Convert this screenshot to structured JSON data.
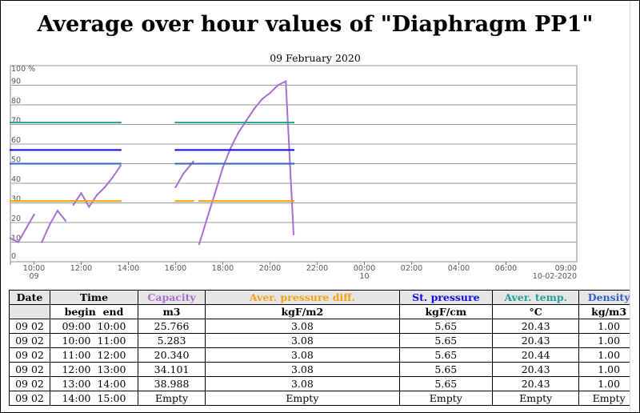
{
  "title": "Average over hour values of \"Diaphragm PP1\"",
  "chart": {
    "date_label": "09 February 2020",
    "y_unit_label": "100 %",
    "y_ticks": [
      "90",
      "80",
      "70",
      "60",
      "50",
      "40",
      "30",
      "20",
      "10",
      "0"
    ],
    "x_ticks": [
      {
        "time": "10:00",
        "date": "09"
      },
      {
        "time": "12:00",
        "date": ""
      },
      {
        "time": "14:00",
        "date": ""
      },
      {
        "time": "16:00",
        "date": ""
      },
      {
        "time": "18:00",
        "date": ""
      },
      {
        "time": "20:00",
        "date": ""
      },
      {
        "time": "22:00",
        "date": ""
      },
      {
        "time": "00:00",
        "date": "10"
      },
      {
        "time": "02:00",
        "date": ""
      },
      {
        "time": "04:00",
        "date": ""
      },
      {
        "time": "06:00",
        "date": ""
      },
      {
        "time": "09:00",
        "date": "10-02-2020"
      }
    ],
    "colors": {
      "capacity": "#a86fcf",
      "pressure_diff": "#f3a00d",
      "st_pressure": "#0d0de0",
      "temperature": "#209f95",
      "density": "#3360c4"
    }
  },
  "chart_data": {
    "type": "line",
    "title": "09 February 2020",
    "y_axis_label": "100 %",
    "ylim": [
      0,
      100
    ],
    "x_range": [
      "2020-02-09 09:00",
      "2020-02-10 09:00"
    ],
    "grid": true,
    "x_ticks": [
      "10:00",
      "12:00",
      "14:00",
      "16:00",
      "18:00",
      "20:00",
      "22:00",
      "00:00",
      "02:00",
      "04:00",
      "06:00",
      "09:00"
    ],
    "series": [
      {
        "name": "Capacity",
        "color": "#a86fcf",
        "x": [
          "09:00",
          "09:20",
          "09:40",
          "10:00",
          "10:20",
          "10:40",
          "11:00",
          "11:20",
          "11:40",
          "12:00",
          "12:20",
          "12:40",
          "13:00",
          "13:20",
          "13:40",
          "16:00",
          "16:20",
          "16:45",
          "17:00",
          "17:20",
          "17:40",
          "18:00",
          "18:20",
          "18:40",
          "19:00",
          "19:20",
          "19:40",
          "20:00",
          "20:20",
          "20:40",
          "21:00"
        ],
        "values": [
          12,
          10,
          17,
          24,
          10,
          19,
          26,
          21,
          29,
          35,
          28,
          34,
          38,
          43,
          49,
          38,
          45,
          51,
          9,
          22,
          35,
          48,
          58,
          66,
          72,
          78,
          83,
          86,
          90,
          92,
          14
        ]
      },
      {
        "name": "Aver. pressure diff.",
        "color": "#f3a00d",
        "x": [
          "09:00",
          "13:40",
          "16:00",
          "16:45",
          "17:00",
          "21:00"
        ],
        "values": [
          31,
          31,
          31,
          31,
          31,
          31
        ]
      },
      {
        "name": "St. pressure",
        "color": "#0d0de0",
        "x": [
          "09:00",
          "13:40",
          "16:00",
          "21:00"
        ],
        "values": [
          57,
          57,
          57,
          57
        ]
      },
      {
        "name": "Aver. temp.",
        "color": "#209f95",
        "x": [
          "09:00",
          "13:40",
          "16:00",
          "21:00"
        ],
        "values": [
          71,
          71,
          71,
          71
        ]
      },
      {
        "name": "Density",
        "color": "#3360c4",
        "x": [
          "09:00",
          "13:40",
          "16:00",
          "21:00"
        ],
        "values": [
          50,
          50,
          50,
          50
        ]
      }
    ]
  },
  "table": {
    "headers": {
      "date": "Date",
      "time": "Time",
      "capacity": "Capacity",
      "pressure_diff": "Aver. pressure diff.",
      "st_pressure": "St. pressure",
      "temp": "Aver. temp.",
      "density": "Density"
    },
    "units": {
      "time": "begin  end",
      "capacity": "m3",
      "pressure_diff": "kgF/m2",
      "st_pressure": "kgF/cm",
      "temp": "°C",
      "density": "kg/m3"
    },
    "rows": [
      {
        "date": "09 02",
        "time": "09:00  10:00",
        "capacity": "25.766",
        "pressure_diff": "3.08",
        "st_pressure": "5.65",
        "temp": "20.43",
        "density": "1.00"
      },
      {
        "date": "09 02",
        "time": "10:00  11:00",
        "capacity": "5.283",
        "pressure_diff": "3.08",
        "st_pressure": "5.65",
        "temp": "20.43",
        "density": "1.00"
      },
      {
        "date": "09 02",
        "time": "11:00  12:00",
        "capacity": "20.340",
        "pressure_diff": "3.08",
        "st_pressure": "5.65",
        "temp": "20.44",
        "density": "1.00"
      },
      {
        "date": "09 02",
        "time": "12:00  13:00",
        "capacity": "34.101",
        "pressure_diff": "3.08",
        "st_pressure": "5.65",
        "temp": "20.43",
        "density": "1.00"
      },
      {
        "date": "09 02",
        "time": "13:00  14:00",
        "capacity": "38.988",
        "pressure_diff": "3.08",
        "st_pressure": "5.65",
        "temp": "20.43",
        "density": "1.00"
      },
      {
        "date": "09 02",
        "time": "14:00  15:00",
        "capacity": "Empty",
        "pressure_diff": "Empty",
        "st_pressure": "Empty",
        "temp": "Empty",
        "density": "Empty"
      }
    ]
  }
}
